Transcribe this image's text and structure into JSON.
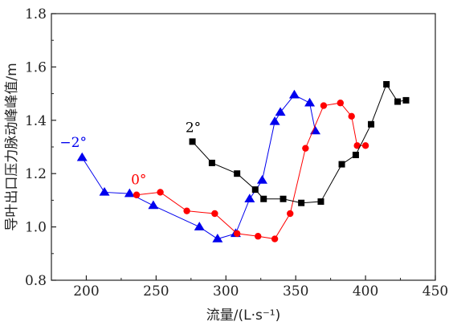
{
  "chart_data": {
    "type": "line",
    "xlabel": "流量/(L·s⁻¹)",
    "ylabel": "导叶出口压力脉动峰峰值/m",
    "xlim": [
      175,
      450
    ],
    "ylim": [
      0.8,
      1.8
    ],
    "xticks": [
      200,
      250,
      300,
      350,
      400,
      450
    ],
    "yticks": [
      0.8,
      1.0,
      1.2,
      1.4,
      1.6,
      1.8
    ],
    "xtick_labels": [
      "200",
      "250",
      "300",
      "350",
      "400",
      "450"
    ],
    "ytick_labels": [
      "0.8",
      "1.0",
      "1.2",
      "1.4",
      "1.6",
      "1.8"
    ],
    "grid": false,
    "series": [
      {
        "name": "−2°",
        "color": "#0000ee",
        "marker": "triangle",
        "x": [
          197,
          213,
          231,
          248,
          281,
          294,
          307,
          317,
          326,
          335,
          339,
          349,
          360,
          364
        ],
        "y": [
          1.26,
          1.13,
          1.125,
          1.08,
          1.0,
          0.955,
          0.975,
          1.105,
          1.175,
          1.395,
          1.43,
          1.495,
          1.465,
          1.36
        ]
      },
      {
        "name": "0°",
        "color": "#ff0000",
        "marker": "circle",
        "x": [
          236,
          253,
          272,
          292,
          308,
          323,
          335,
          346,
          357,
          370,
          382,
          390,
          394,
          400
        ],
        "y": [
          1.12,
          1.13,
          1.06,
          1.05,
          0.975,
          0.965,
          0.955,
          1.05,
          1.295,
          1.455,
          1.465,
          1.415,
          1.305,
          1.305
        ]
      },
      {
        "name": "2°",
        "color": "#000000",
        "marker": "square",
        "x": [
          276,
          290,
          308,
          321,
          327,
          341,
          354,
          368,
          383,
          393,
          404,
          415,
          423,
          429
        ],
        "y": [
          1.32,
          1.24,
          1.2,
          1.14,
          1.105,
          1.105,
          1.09,
          1.095,
          1.235,
          1.27,
          1.385,
          1.535,
          1.47,
          1.475
        ]
      }
    ]
  }
}
